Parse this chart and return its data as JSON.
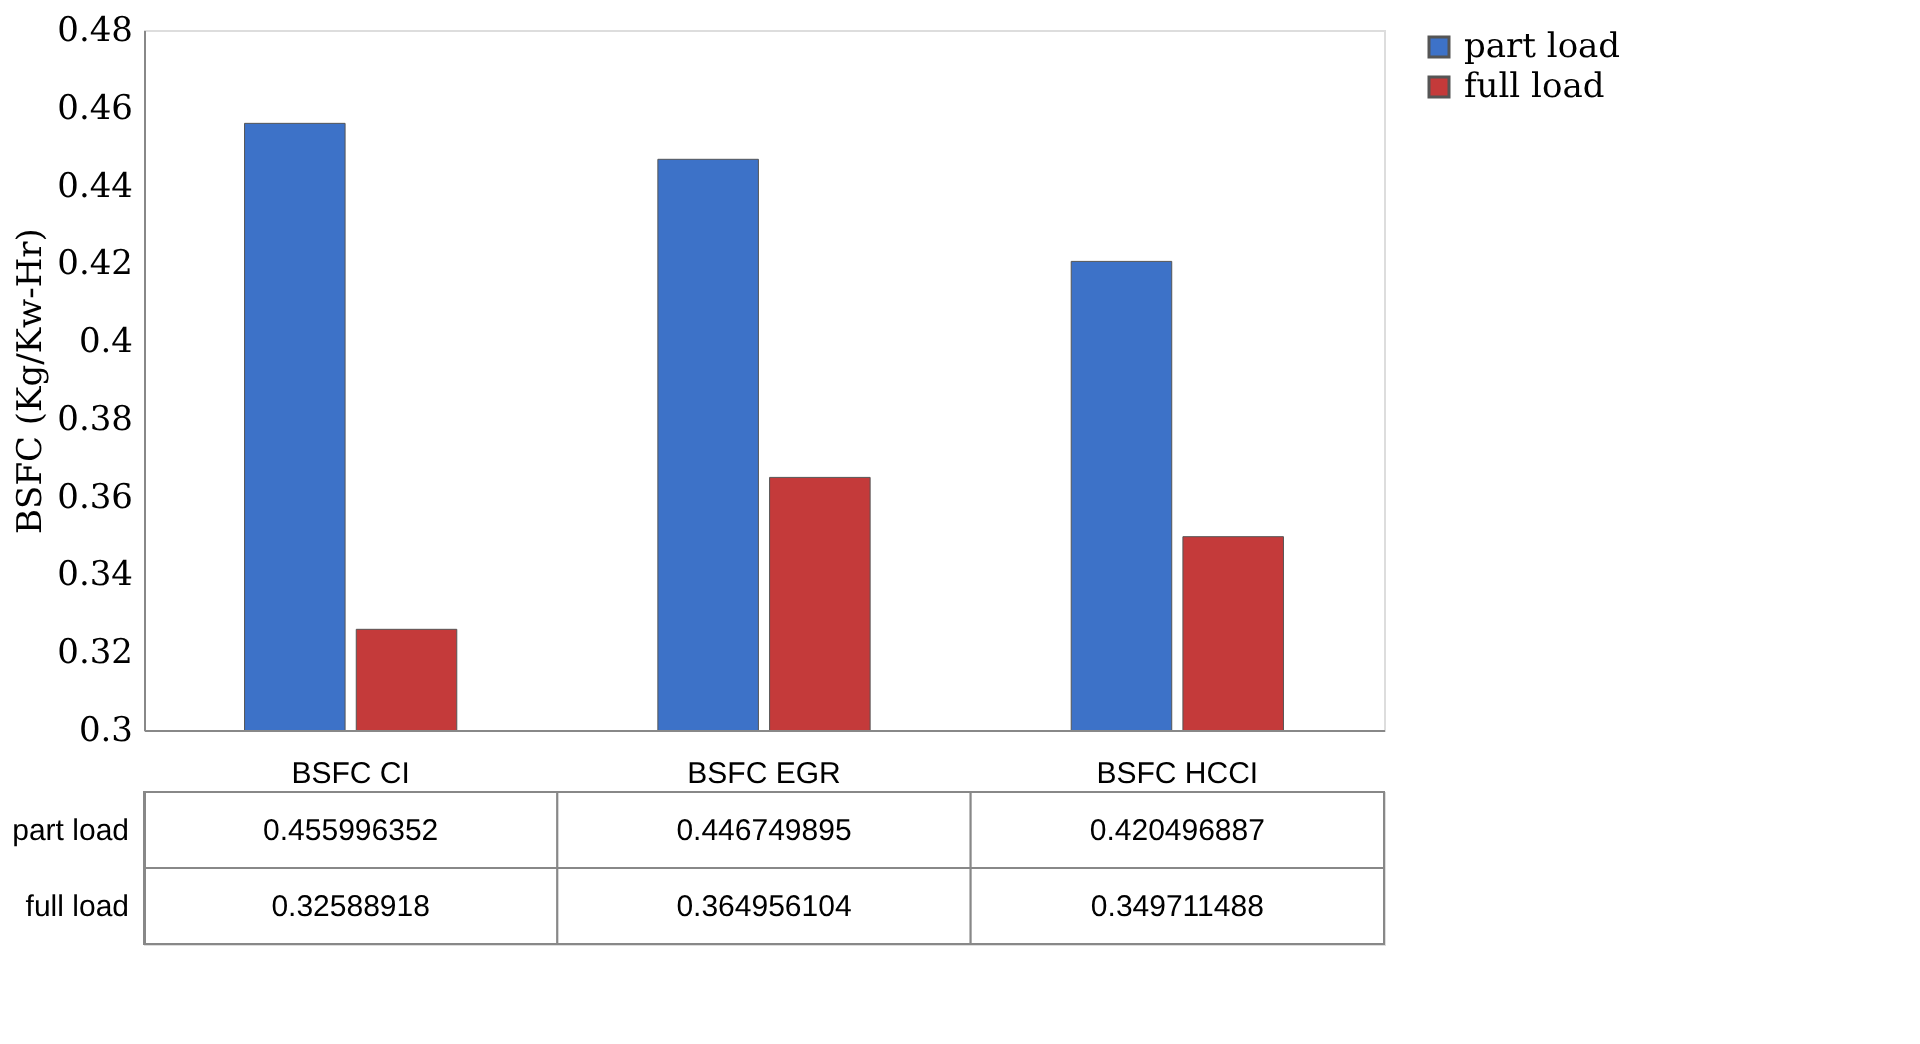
{
  "chart_data": {
    "type": "bar",
    "ylabel": "BSFC (Kg/Kw-Hr)",
    "categories": [
      "BSFC CI",
      "BSFC EGR",
      "BSFC HCCI"
    ],
    "series": [
      {
        "name": "part load",
        "color": "#3d72c8",
        "values": [
          0.455996352,
          0.446749895,
          0.420496887
        ]
      },
      {
        "name": "full load",
        "color": "#c43a3a",
        "values": [
          0.32588918,
          0.364956104,
          0.349711488
        ]
      }
    ],
    "ylim": [
      0.3,
      0.48
    ],
    "yticks": [
      0.3,
      0.32,
      0.34,
      0.36,
      0.38,
      0.4,
      0.42,
      0.44,
      0.46,
      0.48
    ],
    "grid": false,
    "legend": "right",
    "data_labels": true
  }
}
